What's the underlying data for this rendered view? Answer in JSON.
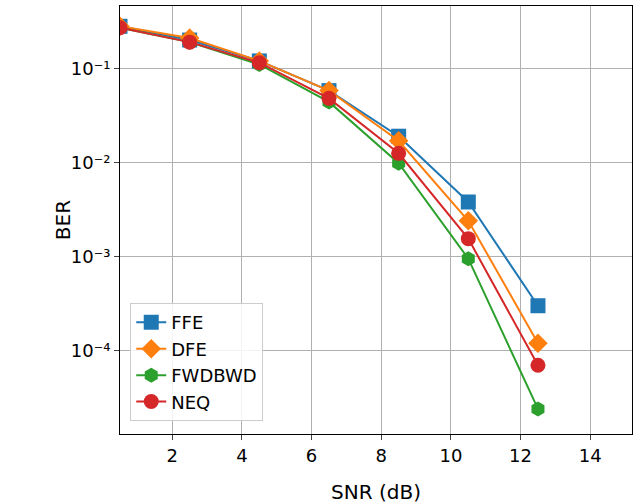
{
  "chart_data": {
    "type": "line",
    "x_label": "SNR (dB)",
    "y_label": "BER",
    "log": "y",
    "grid": true,
    "legend": "lower left",
    "xlim": [
      0.5,
      15.2
    ],
    "xticks": [
      2,
      4,
      6,
      8,
      10,
      12,
      14
    ],
    "ylim": [
      1.3e-05,
      0.46
    ],
    "yticks": [
      {
        "value": 0.0001,
        "label": "10⁻⁴"
      },
      {
        "value": 0.001,
        "label": "10⁻³"
      },
      {
        "value": 0.01,
        "label": "10⁻²"
      },
      {
        "value": 0.1,
        "label": "10⁻¹"
      }
    ],
    "x": [
      0.5,
      2.5,
      4.5,
      6.5,
      8.5,
      10.5,
      12.5
    ],
    "series": [
      {
        "name": "FFE",
        "color": "#1f77b4",
        "marker": "square",
        "values": [
          0.28,
          0.2,
          0.12,
          0.058,
          0.019,
          0.0038,
          0.0003
        ]
      },
      {
        "name": "DFE",
        "color": "#ff7f0e",
        "marker": "diamond",
        "values": [
          0.28,
          0.21,
          0.12,
          0.058,
          0.017,
          0.0024,
          0.00012
        ]
      },
      {
        "name": "FWDBWD",
        "color": "#2ca02c",
        "marker": "hexagon",
        "values": [
          0.27,
          0.19,
          0.11,
          0.044,
          0.0098,
          0.00095,
          2.4e-05
        ]
      },
      {
        "name": "NEQ",
        "color": "#d62728",
        "marker": "circle",
        "values": [
          0.27,
          0.19,
          0.115,
          0.048,
          0.0125,
          0.00155,
          7e-05
        ]
      }
    ]
  }
}
